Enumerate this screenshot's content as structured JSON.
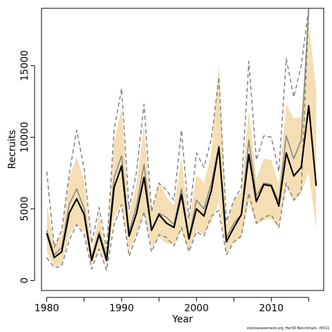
{
  "chart_data": {
    "type": "line",
    "title": "",
    "xlabel": "Year",
    "ylabel": "Recruits",
    "xlim": [
      1979.3,
      2017
    ],
    "ylim": [
      -700,
      19000
    ],
    "x_ticks": [
      1980,
      1985,
      1990,
      1995,
      2000,
      2005,
      2010,
      2015
    ],
    "x_tick_labels": [
      "1980",
      "",
      "1990",
      "",
      "2000",
      "",
      "2010",
      ""
    ],
    "y_ticks": [
      0,
      5000,
      10000,
      15000
    ],
    "y_tick_labels": [
      "0",
      "5000",
      "10000",
      "15000"
    ],
    "grid": false,
    "legend": "none",
    "x": [
      1980,
      1981,
      1982,
      1983,
      1984,
      1985,
      1986,
      1987,
      1988,
      1989,
      1990,
      1991,
      1992,
      1993,
      1994,
      1995,
      1996,
      1997,
      1998,
      1999,
      2000,
      2001,
      2002,
      2003,
      2004,
      2005,
      2006,
      2007,
      2008,
      2009,
      2010,
      2011,
      2012,
      2013,
      2014,
      2015,
      2016
    ],
    "series": [
      {
        "role": "band",
        "color": "#f5deb3",
        "x": [
          1980,
          1981,
          1982,
          1983,
          1984,
          1985,
          1986,
          1987,
          1988,
          1989,
          1990,
          1991,
          1992,
          1993,
          1994,
          1995,
          1996,
          1997,
          1998,
          1999,
          2000,
          2001,
          2002,
          2003,
          2004,
          2005,
          2006,
          2007,
          2008,
          2009,
          2010,
          2011,
          2012,
          2013,
          2014,
          2015,
          2016
        ],
        "upper": [
          5300,
          2500,
          3200,
          7200,
          8600,
          7000,
          2000,
          4600,
          2000,
          9700,
          12000,
          4500,
          6800,
          10700,
          4700,
          6900,
          5800,
          5200,
          8600,
          4000,
          7400,
          6800,
          8900,
          15100,
          3800,
          5600,
          6200,
          11900,
          7100,
          8500,
          8400,
          6700,
          12300,
          11300,
          11400,
          18000,
          13300
        ],
        "lower": [
          2000,
          1000,
          1100,
          3200,
          3900,
          3400,
          1000,
          2300,
          1000,
          4400,
          5400,
          2000,
          3200,
          4700,
          2300,
          3000,
          2600,
          2500,
          3500,
          2000,
          3500,
          3200,
          4100,
          5500,
          2000,
          2700,
          3000,
          5500,
          3900,
          4200,
          4300,
          3700,
          6600,
          5500,
          6100,
          7500,
          3600
        ]
      },
      {
        "role": "gray-line",
        "color": "#808080",
        "x": [
          1980,
          1981,
          1982,
          1983,
          1984,
          1985,
          1986,
          1987,
          1988,
          1989,
          1990,
          1991,
          1992,
          1993,
          1994,
          1995,
          1996,
          1997,
          1998,
          1999,
          2000,
          2001,
          2002,
          2003,
          2004,
          2005,
          2006,
          2007,
          2008,
          2009,
          2010,
          2011,
          2012,
          2013,
          2014,
          2015
        ],
        "values": [
          3500,
          1800,
          2300,
          5300,
          6400,
          5000,
          1600,
          3400,
          1700,
          7200,
          8700,
          3400,
          5200,
          8100,
          3500,
          4700,
          4400,
          3900,
          6400,
          3000,
          5600,
          5000,
          6800,
          9400,
          3000,
          4000,
          4600,
          9800,
          5900,
          6800,
          6700,
          5500,
          10100,
          8500,
          9800,
          19000
        ]
      },
      {
        "role": "dashed-upper",
        "color": "#808080",
        "dashed": true,
        "x": [
          1980,
          1981,
          1982,
          1983,
          1984,
          1985,
          1986,
          1987,
          1988,
          1989,
          1990,
          1991,
          1992,
          1993,
          1994,
          1995,
          1996,
          1997,
          1998,
          1999,
          2000,
          2001,
          2002,
          2003,
          2004,
          2005,
          2006,
          2007,
          2008,
          2009,
          2010,
          2011,
          2012,
          2013,
          2014,
          2015
        ],
        "values": [
          7600,
          2300,
          3500,
          7400,
          10500,
          7800,
          2600,
          5100,
          2200,
          10500,
          13400,
          5000,
          7600,
          12300,
          4800,
          6800,
          6300,
          5600,
          10500,
          4300,
          8900,
          7900,
          9900,
          14200,
          4100,
          5600,
          6500,
          15300,
          8400,
          10100,
          10000,
          7600,
          15500,
          12800,
          15000,
          19000
        ]
      },
      {
        "role": "dashed-lower",
        "color": "#808080",
        "dashed": true,
        "x": [
          1980,
          1981,
          1982,
          1983,
          1984,
          1985,
          1986,
          1987,
          1988,
          1989,
          1990,
          1991,
          1992,
          1993,
          1994,
          1995,
          1996,
          1997,
          1998,
          1999,
          2000,
          2001,
          2002,
          2003,
          2004,
          2005,
          2006,
          2007,
          2008,
          2009,
          2010,
          2011,
          2012,
          2013,
          2014,
          2015
        ],
        "values": [
          1600,
          900,
          1000,
          2800,
          3900,
          3200,
          800,
          2200,
          700,
          3900,
          5300,
          1700,
          3100,
          4800,
          2000,
          3200,
          3000,
          2400,
          3700,
          2000,
          3400,
          3100,
          4500,
          4900,
          1800,
          2700,
          3100,
          6100,
          4000,
          4400,
          4600,
          3700,
          6800,
          5600,
          6300,
          19000
        ]
      },
      {
        "role": "main-line",
        "color": "#000000",
        "x": [
          1980,
          1981,
          1982,
          1983,
          1984,
          1985,
          1986,
          1987,
          1988,
          1989,
          1990,
          1991,
          1992,
          1993,
          1994,
          1995,
          1996,
          1997,
          1998,
          1999,
          2000,
          2001,
          2002,
          2003,
          2004,
          2005,
          2006,
          2007,
          2008,
          2009,
          2010,
          2011,
          2012,
          2013,
          2014,
          2015,
          2016
        ],
        "values": [
          3300,
          1600,
          2000,
          4700,
          5700,
          4600,
          1400,
          3200,
          1400,
          6500,
          8000,
          3100,
          4700,
          7200,
          3500,
          4600,
          4000,
          3700,
          6000,
          2900,
          5000,
          4500,
          6300,
          9300,
          2700,
          3700,
          4600,
          8800,
          5500,
          6700,
          6600,
          5200,
          8900,
          7300,
          7900,
          12200,
          6600
        ]
      }
    ]
  },
  "footer": {
    "credit": "stockassessment.org, Her30 Benchmark, r8311"
  }
}
